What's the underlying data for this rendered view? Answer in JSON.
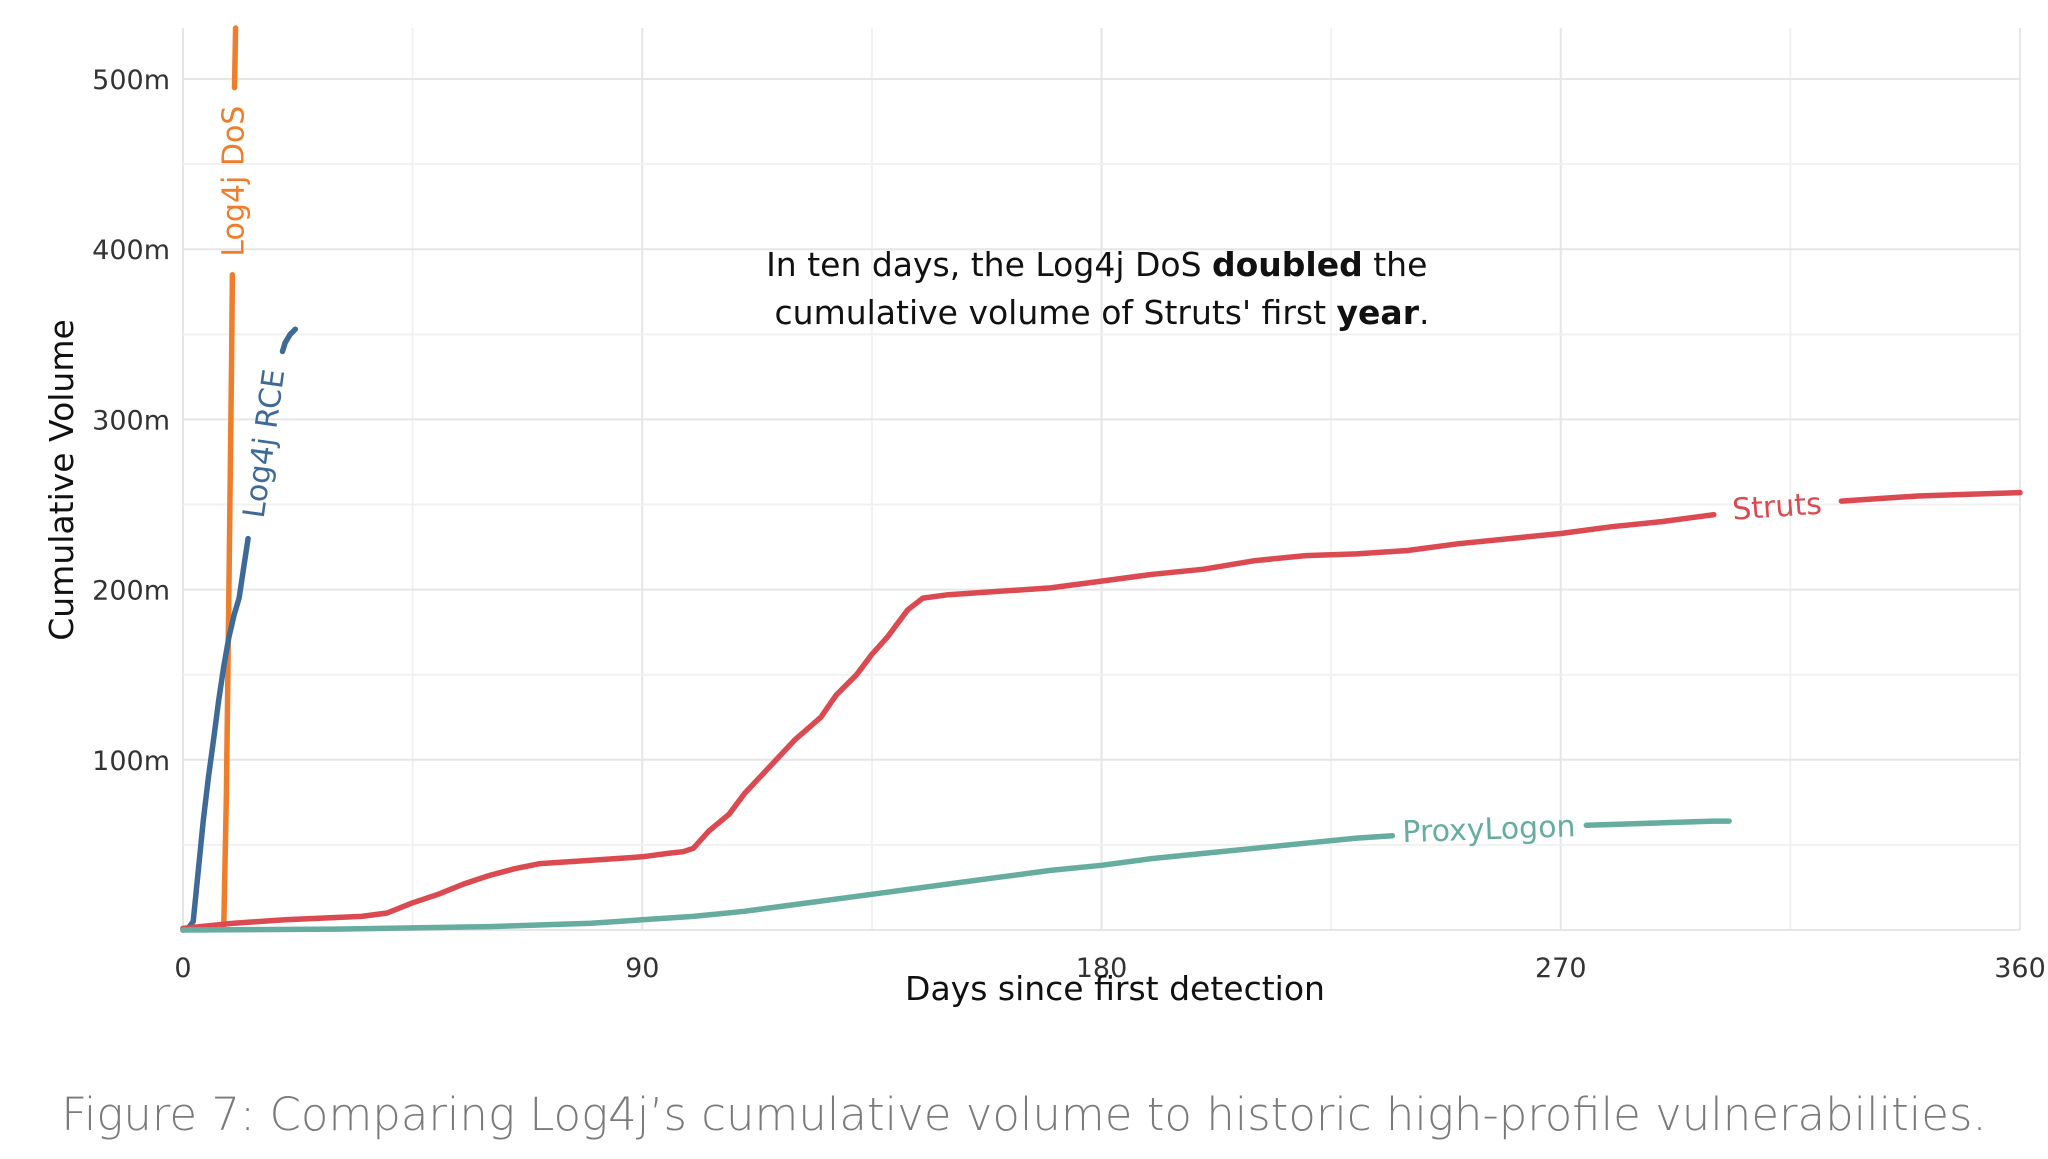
{
  "caption": "Figure 7: Comparing Log4j’s cumulative volume to historic high-profile vulnerabilities.",
  "chart_data": {
    "type": "line",
    "xlabel": "Days since first detection",
    "ylabel": "Cumulative Volume",
    "xlim": [
      0,
      360
    ],
    "ylim": [
      0,
      530
    ],
    "x_ticks": [
      0,
      90,
      180,
      270,
      360
    ],
    "x_tick_labels": [
      "0",
      "90",
      "180",
      "270",
      "360"
    ],
    "y_ticks": [
      100,
      200,
      300,
      400,
      500
    ],
    "y_tick_labels": [
      "100m",
      "200m",
      "300m",
      "400m",
      "500m"
    ],
    "grid": true,
    "annotation": {
      "line1_pre": "In ten days, the Log4j DoS ",
      "line1_bold": "doubled",
      "line1_post": " the",
      "line2_pre": "cumulative volume of Struts' first ",
      "line2_bold": "year",
      "line2_post": "."
    },
    "series": [
      {
        "name": "Log4j DoS",
        "color": "#ee7e2c",
        "points": [
          [
            0,
            0
          ],
          [
            7,
            2
          ],
          [
            8,
            3
          ],
          [
            8.5,
            80
          ],
          [
            9,
            200
          ],
          [
            9.5,
            330
          ],
          [
            10,
            480
          ],
          [
            10.3,
            530
          ]
        ]
      },
      {
        "name": "Log4j RCE",
        "color": "#3e6a98",
        "points": [
          [
            0,
            0
          ],
          [
            1,
            1
          ],
          [
            2,
            5
          ],
          [
            3,
            35
          ],
          [
            4,
            65
          ],
          [
            5,
            90
          ],
          [
            6,
            112
          ],
          [
            7,
            135
          ],
          [
            8,
            155
          ],
          [
            9,
            172
          ],
          [
            10,
            185
          ],
          [
            11,
            195
          ],
          [
            12,
            215
          ],
          [
            13,
            235
          ],
          [
            14,
            255
          ],
          [
            15,
            272
          ],
          [
            16,
            287
          ],
          [
            17,
            300
          ],
          [
            18,
            318
          ],
          [
            19,
            335
          ],
          [
            20,
            345
          ],
          [
            21,
            350
          ],
          [
            22,
            353
          ]
        ]
      },
      {
        "name": "Struts",
        "color": "#dc4a51",
        "points": [
          [
            0,
            1
          ],
          [
            10,
            4
          ],
          [
            20,
            6
          ],
          [
            35,
            8
          ],
          [
            40,
            10
          ],
          [
            45,
            16
          ],
          [
            50,
            21
          ],
          [
            55,
            27
          ],
          [
            60,
            32
          ],
          [
            65,
            36
          ],
          [
            70,
            39
          ],
          [
            80,
            41
          ],
          [
            90,
            43
          ],
          [
            95,
            45
          ],
          [
            98,
            46
          ],
          [
            100,
            48
          ],
          [
            103,
            58
          ],
          [
            107,
            68
          ],
          [
            110,
            80
          ],
          [
            115,
            96
          ],
          [
            120,
            112
          ],
          [
            125,
            125
          ],
          [
            128,
            138
          ],
          [
            132,
            150
          ],
          [
            135,
            162
          ],
          [
            138,
            172
          ],
          [
            140,
            180
          ],
          [
            142,
            188
          ],
          [
            145,
            195
          ],
          [
            150,
            197
          ],
          [
            160,
            199
          ],
          [
            170,
            201
          ],
          [
            180,
            205
          ],
          [
            190,
            209
          ],
          [
            200,
            212
          ],
          [
            210,
            217
          ],
          [
            220,
            220
          ],
          [
            230,
            221
          ],
          [
            240,
            223
          ],
          [
            250,
            227
          ],
          [
            260,
            230
          ],
          [
            270,
            233
          ],
          [
            280,
            237
          ],
          [
            290,
            240
          ],
          [
            300,
            244
          ],
          [
            310,
            248
          ],
          [
            320,
            251
          ],
          [
            330,
            253
          ],
          [
            340,
            255
          ],
          [
            350,
            256
          ],
          [
            360,
            257
          ]
        ]
      },
      {
        "name": "ProxyLogon",
        "color": "#66ad9f",
        "points": [
          [
            0,
            0
          ],
          [
            30,
            0.5
          ],
          [
            60,
            2
          ],
          [
            80,
            4
          ],
          [
            90,
            6
          ],
          [
            100,
            8
          ],
          [
            110,
            11
          ],
          [
            120,
            15
          ],
          [
            130,
            19
          ],
          [
            140,
            23
          ],
          [
            150,
            27
          ],
          [
            160,
            31
          ],
          [
            170,
            35
          ],
          [
            180,
            38
          ],
          [
            190,
            42
          ],
          [
            200,
            45
          ],
          [
            210,
            48
          ],
          [
            220,
            51
          ],
          [
            230,
            54
          ],
          [
            240,
            56
          ],
          [
            250,
            58
          ],
          [
            260,
            60
          ],
          [
            270,
            61
          ],
          [
            280,
            62
          ],
          [
            290,
            63
          ],
          [
            300,
            64
          ],
          [
            303,
            64
          ]
        ]
      }
    ]
  }
}
